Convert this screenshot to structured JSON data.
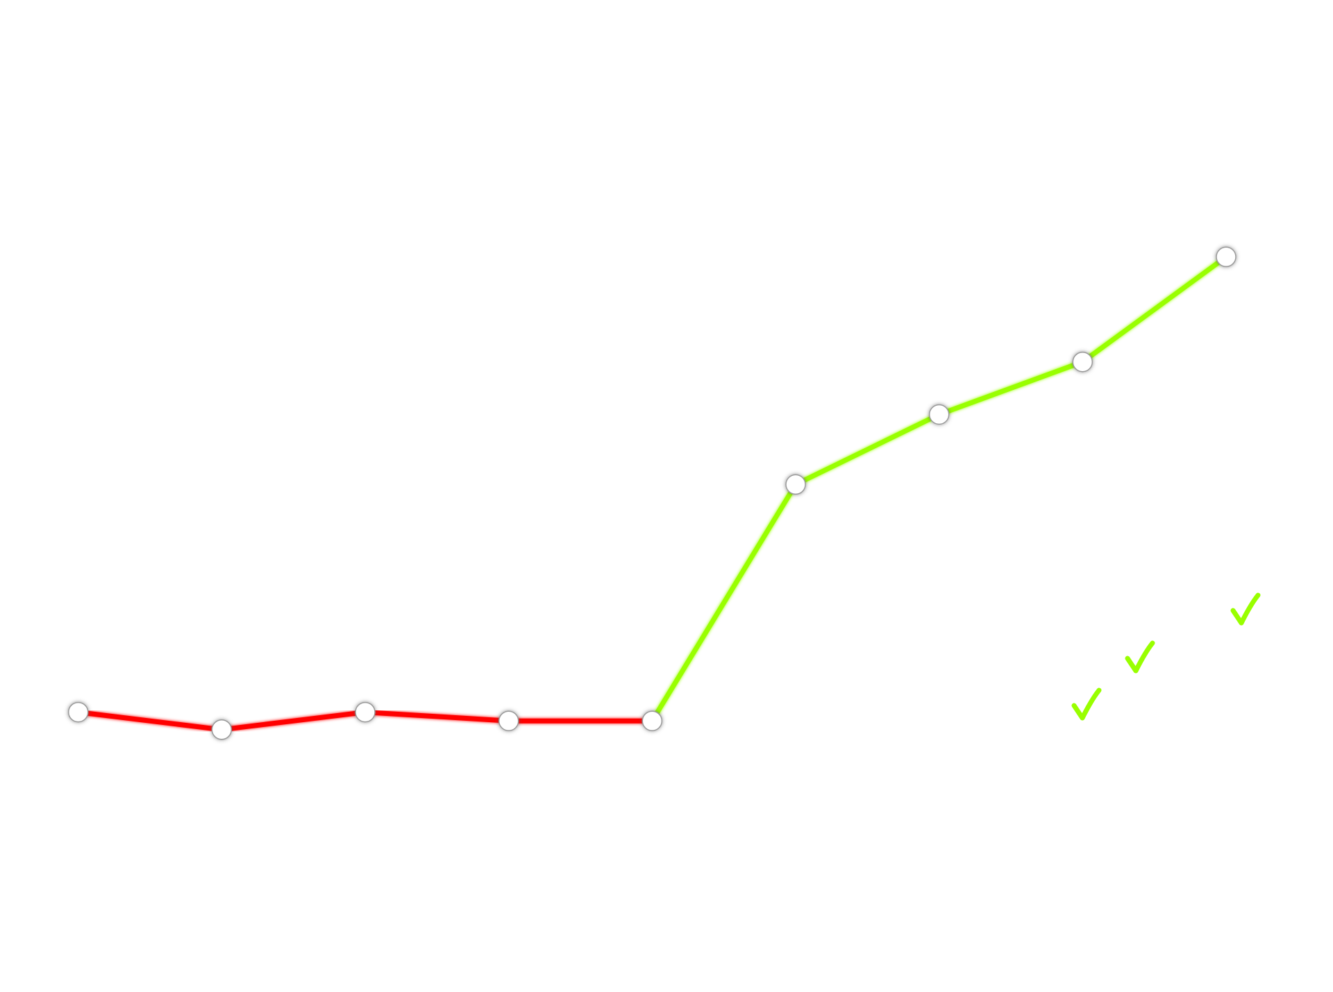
{
  "chart_data": {
    "type": "line",
    "title": "",
    "xlabel": "",
    "ylabel": "",
    "grid": false,
    "legend": "none",
    "x": [
      1,
      2,
      3,
      4,
      5,
      6,
      7,
      8,
      9
    ],
    "y": [
      12.5,
      11.5,
      12.5,
      12.0,
      12.0,
      25.5,
      29.5,
      32.5,
      38.5
    ],
    "xlim": [
      0.6,
      9.6
    ],
    "ylim": [
      -1.5,
      50.0
    ],
    "segments": [
      {
        "from_index": 0,
        "to_index": 4,
        "color": "#ff0000",
        "meaning": "decline"
      },
      {
        "from_index": 4,
        "to_index": 8,
        "color": "#99ff00",
        "meaning": "growth"
      }
    ],
    "marker_color": "#ffffff",
    "marker_stroke": "#9a9a9a",
    "annotations": {
      "type": "check-marks",
      "icon": "check-icon",
      "color": "#99ff00",
      "count": 3
    }
  }
}
